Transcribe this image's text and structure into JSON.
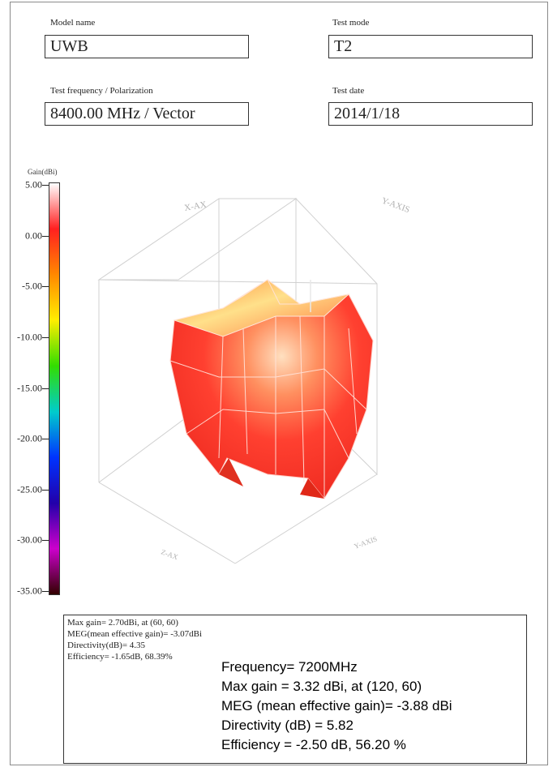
{
  "header": {
    "model_name_label": "Model name",
    "model_name_value": "UWB",
    "test_mode_label": "Test mode",
    "test_mode_value": "T2",
    "test_freq_label": "Test frequency / Polarization",
    "test_freq_value": "8400.00 MHz / Vector",
    "test_date_label": "Test date",
    "test_date_value": "2014/1/18"
  },
  "colorbar": {
    "title": "Gain(dBi)",
    "ticks": [
      "5.00",
      "0.00",
      "-5.00",
      "-10.00",
      "-15.00",
      "-20.00",
      "-25.00",
      "-30.00",
      "-35.00"
    ]
  },
  "chart_data": {
    "type": "3d-surface",
    "title": "",
    "value_range": [
      -35,
      5
    ],
    "colorscale": [
      "#ffffff",
      "#ff2020",
      "#ff8800",
      "#ffee00",
      "#33dd00",
      "#00cccc",
      "#0033ff",
      "#2200aa",
      "#cc00cc",
      "#330000"
    ],
    "axis_labels": [
      "X-AX",
      "Y-AXIS",
      "Z-AX",
      "Y-AXIS"
    ]
  },
  "info_old": {
    "line1": "Max gain= 2.70dBi, at (60, 60)",
    "line2": "MEG(mean effective gain)= -3.07dBi",
    "line3": "Directivity(dB)= 4.35",
    "line4": "Efficiency= -1.65dB, 68.39%"
  },
  "info_new": {
    "line1": "Frequency= 7200MHz",
    "line2": "Max gain = 3.32 dBi, at (120, 60)",
    "line3": "MEG (mean effective gain)= -3.88 dBi",
    "line4": "Directivity (dB) = 5.82",
    "line5": "Efficiency = -2.50 dB, 56.20 %"
  }
}
